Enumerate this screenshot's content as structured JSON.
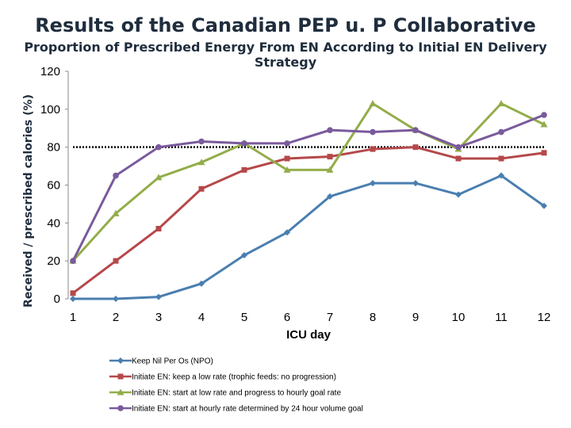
{
  "chart_data": {
    "type": "line",
    "title": "Results of the Canadian PEP u. P Collaborative",
    "subtitle": "Proportion of Prescribed Energy From EN According to Initial EN Delivery Strategy",
    "xlabel": "ICU day",
    "ylabel": "Received / prescribed calories (%)",
    "x": [
      1,
      2,
      3,
      4,
      5,
      6,
      7,
      8,
      9,
      10,
      11,
      12
    ],
    "ylim": [
      0,
      120
    ],
    "yticks": [
      0,
      20,
      40,
      60,
      80,
      100,
      120
    ],
    "reference_line": {
      "y": 80,
      "style": "dotted",
      "color": "#000000"
    },
    "grid": false,
    "legend_position": "bottom",
    "series": [
      {
        "name": "Keep Nil Per Os (NPO)",
        "color": "#4a7eb0",
        "marker": "diamond",
        "values": [
          0,
          0,
          1,
          8,
          23,
          35,
          54,
          61,
          61,
          55,
          65,
          49
        ]
      },
      {
        "name": "Initiate EN: keep a low rate (trophic feeds: no progression)",
        "color": "#b5484a",
        "marker": "square",
        "values": [
          3,
          20,
          37,
          58,
          68,
          74,
          75,
          79,
          80,
          74,
          74,
          77
        ]
      },
      {
        "name": "Initiate EN: start at low rate and progress to hourly goal rate",
        "color": "#93ad4a",
        "marker": "triangle",
        "values": [
          20,
          45,
          64,
          72,
          82,
          68,
          68,
          103,
          89,
          79,
          103,
          92
        ]
      },
      {
        "name": "Initiate EN: start at hourly rate determined by 24 hour volume goal",
        "color": "#7a5a9c",
        "marker": "circle",
        "values": [
          20,
          65,
          80,
          83,
          82,
          82,
          89,
          88,
          89,
          80,
          88,
          97
        ]
      }
    ]
  }
}
